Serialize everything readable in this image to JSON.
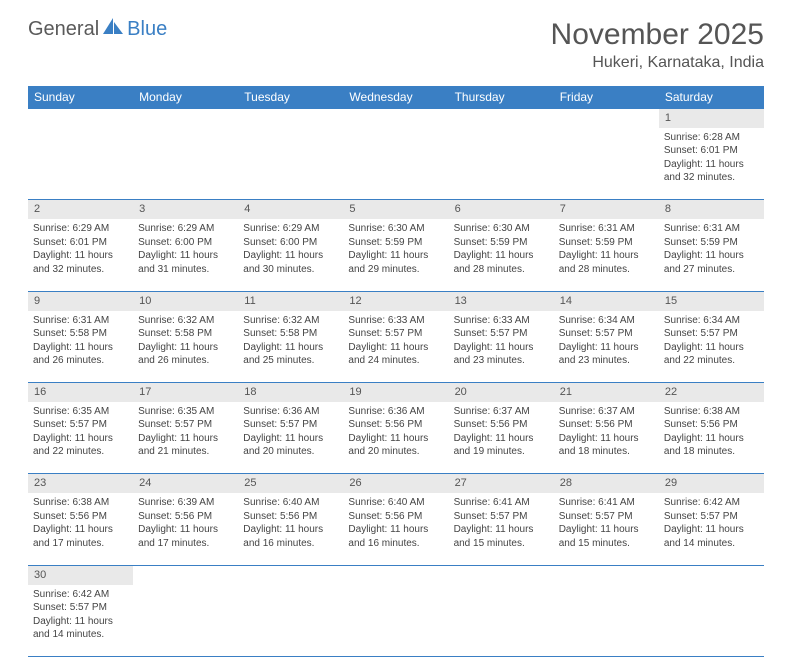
{
  "brand": {
    "part1": "General",
    "part2": "Blue"
  },
  "title": "November 2025",
  "location": "Hukeri, Karnataka, India",
  "header_bg": "#3a7fc4",
  "header_fg": "#ffffff",
  "daynum_bg": "#e9e9e9",
  "border_color": "#3a7fc4",
  "weekdays": [
    "Sunday",
    "Monday",
    "Tuesday",
    "Wednesday",
    "Thursday",
    "Friday",
    "Saturday"
  ],
  "weeks": [
    {
      "days": [
        null,
        null,
        null,
        null,
        null,
        null,
        {
          "n": "1",
          "sunrise": "Sunrise: 6:28 AM",
          "sunset": "Sunset: 6:01 PM",
          "daylight1": "Daylight: 11 hours",
          "daylight2": "and 32 minutes."
        }
      ]
    },
    {
      "days": [
        {
          "n": "2",
          "sunrise": "Sunrise: 6:29 AM",
          "sunset": "Sunset: 6:01 PM",
          "daylight1": "Daylight: 11 hours",
          "daylight2": "and 32 minutes."
        },
        {
          "n": "3",
          "sunrise": "Sunrise: 6:29 AM",
          "sunset": "Sunset: 6:00 PM",
          "daylight1": "Daylight: 11 hours",
          "daylight2": "and 31 minutes."
        },
        {
          "n": "4",
          "sunrise": "Sunrise: 6:29 AM",
          "sunset": "Sunset: 6:00 PM",
          "daylight1": "Daylight: 11 hours",
          "daylight2": "and 30 minutes."
        },
        {
          "n": "5",
          "sunrise": "Sunrise: 6:30 AM",
          "sunset": "Sunset: 5:59 PM",
          "daylight1": "Daylight: 11 hours",
          "daylight2": "and 29 minutes."
        },
        {
          "n": "6",
          "sunrise": "Sunrise: 6:30 AM",
          "sunset": "Sunset: 5:59 PM",
          "daylight1": "Daylight: 11 hours",
          "daylight2": "and 28 minutes."
        },
        {
          "n": "7",
          "sunrise": "Sunrise: 6:31 AM",
          "sunset": "Sunset: 5:59 PM",
          "daylight1": "Daylight: 11 hours",
          "daylight2": "and 28 minutes."
        },
        {
          "n": "8",
          "sunrise": "Sunrise: 6:31 AM",
          "sunset": "Sunset: 5:59 PM",
          "daylight1": "Daylight: 11 hours",
          "daylight2": "and 27 minutes."
        }
      ]
    },
    {
      "days": [
        {
          "n": "9",
          "sunrise": "Sunrise: 6:31 AM",
          "sunset": "Sunset: 5:58 PM",
          "daylight1": "Daylight: 11 hours",
          "daylight2": "and 26 minutes."
        },
        {
          "n": "10",
          "sunrise": "Sunrise: 6:32 AM",
          "sunset": "Sunset: 5:58 PM",
          "daylight1": "Daylight: 11 hours",
          "daylight2": "and 26 minutes."
        },
        {
          "n": "11",
          "sunrise": "Sunrise: 6:32 AM",
          "sunset": "Sunset: 5:58 PM",
          "daylight1": "Daylight: 11 hours",
          "daylight2": "and 25 minutes."
        },
        {
          "n": "12",
          "sunrise": "Sunrise: 6:33 AM",
          "sunset": "Sunset: 5:57 PM",
          "daylight1": "Daylight: 11 hours",
          "daylight2": "and 24 minutes."
        },
        {
          "n": "13",
          "sunrise": "Sunrise: 6:33 AM",
          "sunset": "Sunset: 5:57 PM",
          "daylight1": "Daylight: 11 hours",
          "daylight2": "and 23 minutes."
        },
        {
          "n": "14",
          "sunrise": "Sunrise: 6:34 AM",
          "sunset": "Sunset: 5:57 PM",
          "daylight1": "Daylight: 11 hours",
          "daylight2": "and 23 minutes."
        },
        {
          "n": "15",
          "sunrise": "Sunrise: 6:34 AM",
          "sunset": "Sunset: 5:57 PM",
          "daylight1": "Daylight: 11 hours",
          "daylight2": "and 22 minutes."
        }
      ]
    },
    {
      "days": [
        {
          "n": "16",
          "sunrise": "Sunrise: 6:35 AM",
          "sunset": "Sunset: 5:57 PM",
          "daylight1": "Daylight: 11 hours",
          "daylight2": "and 22 minutes."
        },
        {
          "n": "17",
          "sunrise": "Sunrise: 6:35 AM",
          "sunset": "Sunset: 5:57 PM",
          "daylight1": "Daylight: 11 hours",
          "daylight2": "and 21 minutes."
        },
        {
          "n": "18",
          "sunrise": "Sunrise: 6:36 AM",
          "sunset": "Sunset: 5:57 PM",
          "daylight1": "Daylight: 11 hours",
          "daylight2": "and 20 minutes."
        },
        {
          "n": "19",
          "sunrise": "Sunrise: 6:36 AM",
          "sunset": "Sunset: 5:56 PM",
          "daylight1": "Daylight: 11 hours",
          "daylight2": "and 20 minutes."
        },
        {
          "n": "20",
          "sunrise": "Sunrise: 6:37 AM",
          "sunset": "Sunset: 5:56 PM",
          "daylight1": "Daylight: 11 hours",
          "daylight2": "and 19 minutes."
        },
        {
          "n": "21",
          "sunrise": "Sunrise: 6:37 AM",
          "sunset": "Sunset: 5:56 PM",
          "daylight1": "Daylight: 11 hours",
          "daylight2": "and 18 minutes."
        },
        {
          "n": "22",
          "sunrise": "Sunrise: 6:38 AM",
          "sunset": "Sunset: 5:56 PM",
          "daylight1": "Daylight: 11 hours",
          "daylight2": "and 18 minutes."
        }
      ]
    },
    {
      "days": [
        {
          "n": "23",
          "sunrise": "Sunrise: 6:38 AM",
          "sunset": "Sunset: 5:56 PM",
          "daylight1": "Daylight: 11 hours",
          "daylight2": "and 17 minutes."
        },
        {
          "n": "24",
          "sunrise": "Sunrise: 6:39 AM",
          "sunset": "Sunset: 5:56 PM",
          "daylight1": "Daylight: 11 hours",
          "daylight2": "and 17 minutes."
        },
        {
          "n": "25",
          "sunrise": "Sunrise: 6:40 AM",
          "sunset": "Sunset: 5:56 PM",
          "daylight1": "Daylight: 11 hours",
          "daylight2": "and 16 minutes."
        },
        {
          "n": "26",
          "sunrise": "Sunrise: 6:40 AM",
          "sunset": "Sunset: 5:56 PM",
          "daylight1": "Daylight: 11 hours",
          "daylight2": "and 16 minutes."
        },
        {
          "n": "27",
          "sunrise": "Sunrise: 6:41 AM",
          "sunset": "Sunset: 5:57 PM",
          "daylight1": "Daylight: 11 hours",
          "daylight2": "and 15 minutes."
        },
        {
          "n": "28",
          "sunrise": "Sunrise: 6:41 AM",
          "sunset": "Sunset: 5:57 PM",
          "daylight1": "Daylight: 11 hours",
          "daylight2": "and 15 minutes."
        },
        {
          "n": "29",
          "sunrise": "Sunrise: 6:42 AM",
          "sunset": "Sunset: 5:57 PM",
          "daylight1": "Daylight: 11 hours",
          "daylight2": "and 14 minutes."
        }
      ]
    },
    {
      "days": [
        {
          "n": "30",
          "sunrise": "Sunrise: 6:42 AM",
          "sunset": "Sunset: 5:57 PM",
          "daylight1": "Daylight: 11 hours",
          "daylight2": "and 14 minutes."
        },
        null,
        null,
        null,
        null,
        null,
        null
      ]
    }
  ]
}
